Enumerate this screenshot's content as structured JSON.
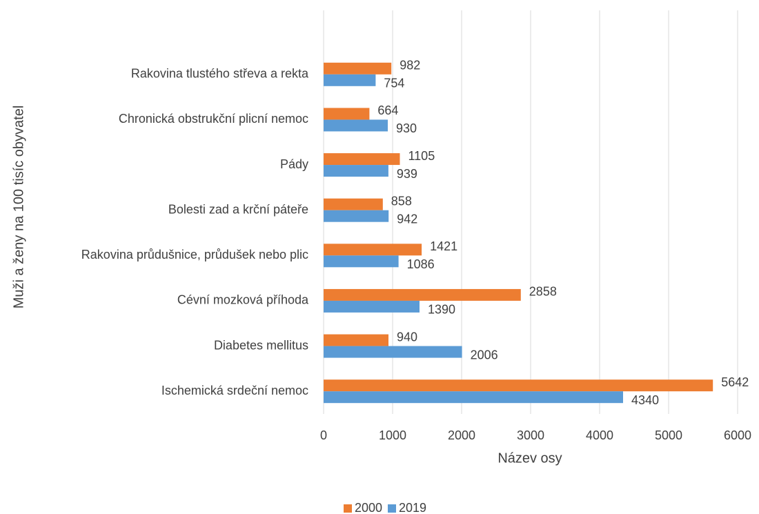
{
  "chart_data": {
    "type": "barh",
    "x_label": "Název osy",
    "y_label": "Muži a ženy na 100 tisíc obyvatel",
    "categories": [
      "Ischemická srdeční nemoc",
      "Diabetes mellitus ",
      "Cévní mozková příhoda",
      "Rakovina průdušnice, průdušek nebo plic",
      "Bolesti zad a krční páteře",
      "Pády",
      "Chronická obstrukční plicní nemoc",
      "Rakovina tlustého střeva a rekta"
    ],
    "series": [
      {
        "name": "2000",
        "color": "#ed7d31",
        "values": [
          5642,
          940,
          2858,
          1421,
          858,
          1105,
          664,
          982
        ]
      },
      {
        "name": "2019",
        "color": "#5b9bd5",
        "values": [
          4340,
          2006,
          1390,
          1086,
          942,
          939,
          930,
          754
        ]
      }
    ],
    "xlim": [
      0,
      6000
    ],
    "xticks": [
      0,
      1000,
      2000,
      3000,
      4000,
      5000,
      6000
    ],
    "grid": true,
    "legend": "bottom"
  }
}
